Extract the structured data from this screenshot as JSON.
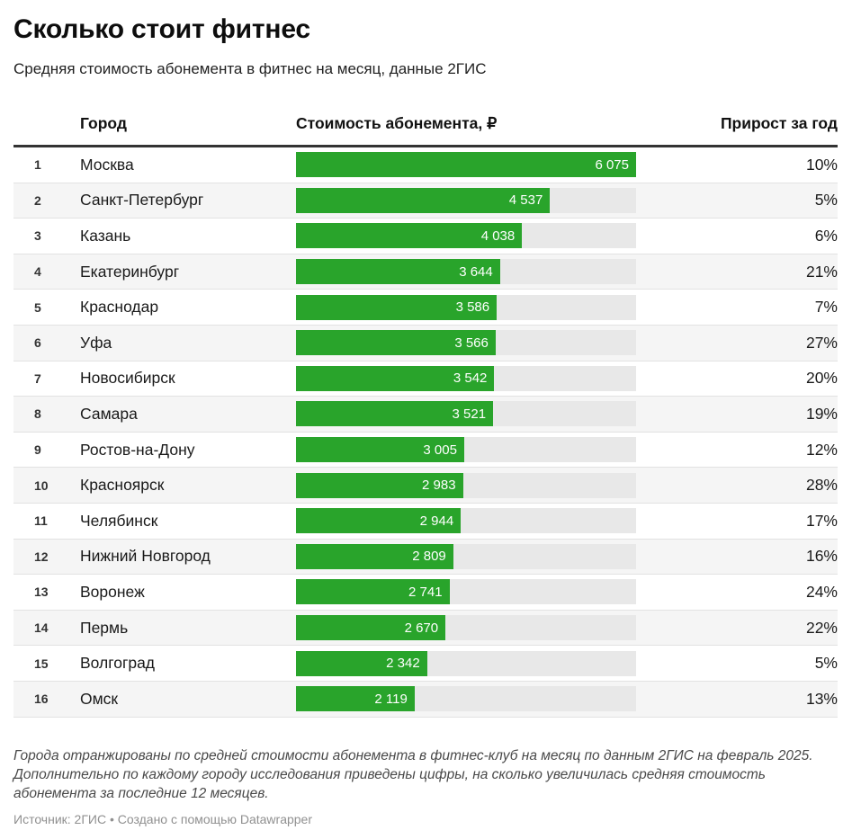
{
  "header": {
    "title": "Сколько стоит фитнес",
    "subtitle": "Средняя стоимость абонемента в фитнес на месяц, данные 2ГИС"
  },
  "table": {
    "columns": {
      "city": "Город",
      "cost": "Стоимость абонемента, ₽",
      "growth": "Прирост за год"
    },
    "rows": [
      {
        "rank": "1",
        "city": "Москва",
        "value_label": "6 075",
        "value": 6075,
        "growth": "10%"
      },
      {
        "rank": "2",
        "city": "Санкт-Петербург",
        "value_label": "4 537",
        "value": 4537,
        "growth": "5%"
      },
      {
        "rank": "3",
        "city": "Казань",
        "value_label": "4 038",
        "value": 4038,
        "growth": "6%"
      },
      {
        "rank": "4",
        "city": "Екатеринбург",
        "value_label": "3 644",
        "value": 3644,
        "growth": "21%"
      },
      {
        "rank": "5",
        "city": "Краснодар",
        "value_label": "3 586",
        "value": 3586,
        "growth": "7%"
      },
      {
        "rank": "6",
        "city": "Уфа",
        "value_label": "3 566",
        "value": 3566,
        "growth": "27%"
      },
      {
        "rank": "7",
        "city": "Новосибирск",
        "value_label": "3 542",
        "value": 3542,
        "growth": "20%"
      },
      {
        "rank": "8",
        "city": "Самара",
        "value_label": "3 521",
        "value": 3521,
        "growth": "19%"
      },
      {
        "rank": "9",
        "city": "Ростов-на-Дону",
        "value_label": "3 005",
        "value": 3005,
        "growth": "12%"
      },
      {
        "rank": "10",
        "city": "Красноярск",
        "value_label": "2 983",
        "value": 2983,
        "growth": "28%"
      },
      {
        "rank": "11",
        "city": "Челябинск",
        "value_label": "2 944",
        "value": 2944,
        "growth": "17%"
      },
      {
        "rank": "12",
        "city": "Нижний Новгород",
        "value_label": "2 809",
        "value": 2809,
        "growth": "16%"
      },
      {
        "rank": "13",
        "city": "Воронеж",
        "value_label": "2 741",
        "value": 2741,
        "growth": "24%"
      },
      {
        "rank": "14",
        "city": "Пермь",
        "value_label": "2 670",
        "value": 2670,
        "growth": "22%"
      },
      {
        "rank": "15",
        "city": "Волгоград",
        "value_label": "2 342",
        "value": 2342,
        "growth": "5%"
      },
      {
        "rank": "16",
        "city": "Омск",
        "value_label": "2 119",
        "value": 2119,
        "growth": "13%"
      }
    ]
  },
  "footer": {
    "note": "Города отранжированы по средней стоимости абонемента в фитнес-клуб на месяц по данным 2ГИС на февраль 2025. Дополнительно по каждому городу исследования приведены цифры, на сколько увеличилась средняя стоимость абонемента за последние 12 месяцев.",
    "source": "Источник: 2ГИС • Создано с помощью Datawrapper"
  },
  "colors": {
    "bar": "#29a42b",
    "track": "#e8e8e8",
    "stripe": "#f5f5f5",
    "header_rule": "#333333"
  },
  "chart_data": {
    "type": "bar",
    "orientation": "horizontal",
    "title": "Сколько стоит фитнес",
    "subtitle": "Средняя стоимость абонемента в фитнес на месяц, данные 2ГИС",
    "categories": [
      "Москва",
      "Санкт-Петербург",
      "Казань",
      "Екатеринбург",
      "Краснодар",
      "Уфа",
      "Новосибирск",
      "Самара",
      "Ростов-на-Дону",
      "Красноярск",
      "Челябинск",
      "Нижний Новгород",
      "Воронеж",
      "Пермь",
      "Волгоград",
      "Омск"
    ],
    "series": [
      {
        "name": "Стоимость абонемента, ₽",
        "values": [
          6075,
          4537,
          4038,
          3644,
          3586,
          3566,
          3542,
          3521,
          3005,
          2983,
          2944,
          2809,
          2741,
          2670,
          2342,
          2119
        ]
      },
      {
        "name": "Прирост за год, %",
        "values": [
          10,
          5,
          6,
          21,
          7,
          27,
          20,
          19,
          12,
          28,
          17,
          16,
          24,
          22,
          5,
          13
        ]
      }
    ],
    "xlim": [
      0,
      6075
    ],
    "grid": false,
    "legend_position": "none",
    "annotations": [
      "Значения стоимости подписаны внутри столбцов"
    ]
  }
}
